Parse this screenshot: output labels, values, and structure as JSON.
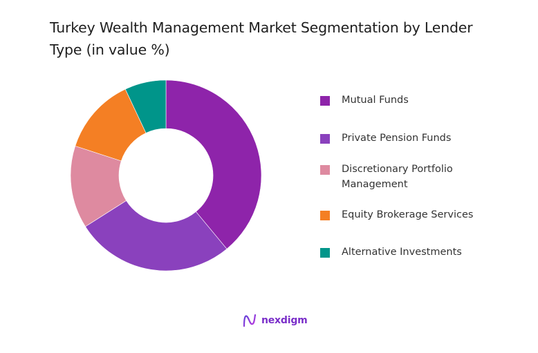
{
  "title": "Turkey Wealth Management Market Segmentation by Lender Type (in value %)",
  "chart_data": {
    "type": "pie",
    "variant": "donut",
    "title": "Turkey Wealth Management Market Segmentation by Lender Type (in value %)",
    "categories": [
      "Mutual Funds",
      "Private Pension Funds",
      "Discretionary Portfolio Management",
      "Equity Brokerage Services",
      "Alternative Investments"
    ],
    "values": [
      39,
      27,
      14,
      13,
      7
    ],
    "colors": [
      "#8e24aa",
      "#8a41bd",
      "#de8aa0",
      "#f47f24",
      "#00958a"
    ],
    "legend_position": "right",
    "start_angle": "12 o'clock, clockwise",
    "data_labels": false
  },
  "legend": {
    "items": [
      {
        "label": "Mutual Funds",
        "color": "#8e24aa"
      },
      {
        "label": "Private Pension Funds",
        "color": "#8a41bd"
      },
      {
        "label": "Discretionary Portfolio Management",
        "color": "#de8aa0"
      },
      {
        "label": "Equity Brokerage Services",
        "color": "#f47f24"
      },
      {
        "label": "Alternative Investments",
        "color": "#00958a"
      }
    ]
  },
  "logo": {
    "text": "nexdigm"
  }
}
